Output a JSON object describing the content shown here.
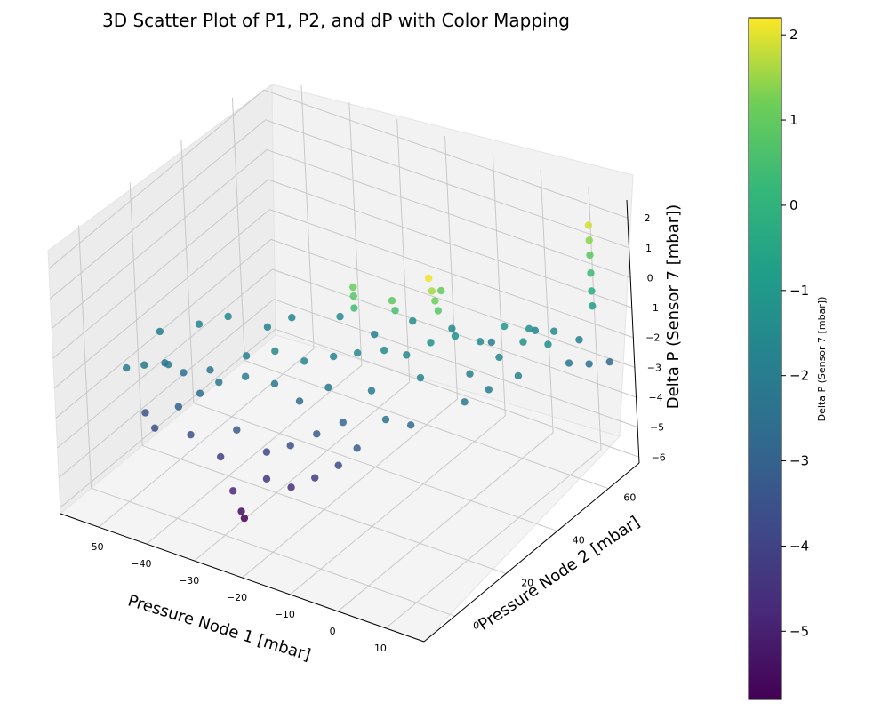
{
  "chart_data": {
    "type": "scatter",
    "projection": "3d",
    "title": "3D Scatter Plot of P1, P2, and dP with Color Mapping",
    "xlabel": "Pressure Node 1 [mbar]",
    "ylabel": "Pressure Node 2 [mbar]",
    "zlabel": "Delta P (Sensor 7 [mbar])",
    "colorbar_label": "Delta P (Sensor 7 [mbar])",
    "colormap": "viridis",
    "xlim": [
      -58,
      18
    ],
    "ylim": [
      -12,
      72
    ],
    "zlim": [
      -6.2,
      2.6
    ],
    "clim": [
      -5.8,
      2.2
    ],
    "x_ticks": [
      -50,
      -40,
      -30,
      -20,
      -10,
      0,
      10
    ],
    "y_ticks": [
      0,
      20,
      40,
      60
    ],
    "z_ticks": [
      2,
      1,
      0,
      -1,
      -2,
      -3,
      -4,
      -5,
      -6
    ],
    "colorbar_ticks": [
      2,
      1,
      0,
      -1,
      -2,
      -3,
      -4,
      -5
    ],
    "grid": true,
    "series": [
      {
        "points": [
          [
            -51,
            3,
            -2.0
          ],
          [
            -50,
            8,
            -2.2
          ],
          [
            -49,
            14,
            -2.5
          ],
          [
            -48,
            4,
            -3.4
          ],
          [
            -46,
            10,
            -2.1
          ],
          [
            -45,
            2,
            -3.6
          ],
          [
            -44,
            12,
            -2.4
          ],
          [
            -42,
            6,
            -3.0
          ],
          [
            -40,
            15,
            -2.3
          ],
          [
            -39,
            9,
            -2.6
          ],
          [
            -38,
            3,
            -3.5
          ],
          [
            -36,
            11,
            -2.2
          ],
          [
            -35,
            20,
            -1.9
          ],
          [
            -33,
            5,
            -4.1
          ],
          [
            -32,
            14,
            -2.0
          ],
          [
            -31,
            8,
            -3.3
          ],
          [
            -30,
            22,
            -1.6
          ],
          [
            -29,
            2,
            -4.8
          ],
          [
            -28,
            3,
            -5.5
          ],
          [
            -28,
            4,
            -5.8
          ],
          [
            -27,
            16,
            -2.1
          ],
          [
            -26,
            10,
            -3.9
          ],
          [
            -25,
            24,
            -1.8
          ],
          [
            -24,
            6,
            -4.4
          ],
          [
            -23,
            18,
            -2.6
          ],
          [
            -22,
            12,
            -3.6
          ],
          [
            -21,
            28,
            -1.7
          ],
          [
            -20,
            8,
            -4.6
          ],
          [
            -19,
            22,
            -2.2
          ],
          [
            -18,
            15,
            -3.2
          ],
          [
            -17,
            30,
            -1.5
          ],
          [
            -16,
            10,
            -4.2
          ],
          [
            -15,
            26,
            0.4
          ],
          [
            -15,
            26,
            0.8
          ],
          [
            -15,
            26,
            1.1
          ],
          [
            -14,
            18,
            -2.8
          ],
          [
            -13,
            33,
            -1.4
          ],
          [
            -12,
            12,
            -3.7
          ],
          [
            -11,
            24,
            -2.0
          ],
          [
            -10,
            36,
            -1.6
          ],
          [
            -9,
            14,
            -3.1
          ],
          [
            -8,
            28,
            0.9
          ],
          [
            -8,
            29,
            0.5
          ],
          [
            -7,
            40,
            -1.3
          ],
          [
            -6,
            20,
            -2.4
          ],
          [
            -5,
            32,
            -1.8
          ],
          [
            -4,
            44,
            -1.2
          ],
          [
            -3,
            24,
            -2.7
          ],
          [
            -2,
            36,
            1.0
          ],
          [
            -1,
            48,
            -1.5
          ],
          [
            0,
            28,
            2.1
          ],
          [
            0,
            29,
            1.6
          ],
          [
            0,
            30,
            1.2
          ],
          [
            0,
            31,
            0.8
          ],
          [
            1,
            40,
            -1.9
          ],
          [
            2,
            52,
            -1.1
          ],
          [
            3,
            34,
            -2.3
          ],
          [
            4,
            46,
            -1.6
          ],
          [
            5,
            56,
            -1.3
          ],
          [
            6,
            38,
            -2.0
          ],
          [
            7,
            50,
            -1.2
          ],
          [
            8,
            60,
            -1.5
          ],
          [
            9,
            44,
            -1.8
          ],
          [
            10,
            54,
            -1.4
          ],
          [
            11,
            64,
            -1.9
          ],
          [
            12,
            58,
            -2.2
          ],
          [
            13,
            66,
            1.9
          ],
          [
            13,
            66,
            1.4
          ],
          [
            13,
            66,
            0.9
          ],
          [
            13,
            66,
            0.3
          ],
          [
            13,
            66,
            -0.3
          ],
          [
            13,
            66,
            -0.8
          ],
          [
            14,
            62,
            -2.4
          ],
          [
            15,
            68,
            -2.7
          ],
          [
            -52,
            18,
            -1.9
          ],
          [
            -47,
            24,
            -1.8
          ],
          [
            -43,
            28,
            -1.6
          ],
          [
            -37,
            32,
            -1.9
          ],
          [
            -34,
            36,
            -1.7
          ],
          [
            -26,
            40,
            -1.5
          ],
          [
            -20,
            42,
            -1.9
          ],
          [
            -14,
            46,
            -1.4
          ],
          [
            -8,
            50,
            -1.6
          ],
          [
            -2,
            54,
            -2.0
          ],
          [
            4,
            60,
            -1.7
          ]
        ]
      }
    ]
  }
}
